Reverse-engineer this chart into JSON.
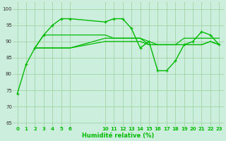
{
  "xlabel": "Humidité relative (%)",
  "bg_color": "#cceedd",
  "line_color": "#00bb00",
  "grid_color": "#99cc99",
  "xlim": [
    -0.5,
    23.5
  ],
  "ylim": [
    64,
    102
  ],
  "yticks": [
    65,
    70,
    75,
    80,
    85,
    90,
    95,
    100
  ],
  "xtick_positions": [
    0,
    1,
    2,
    3,
    4,
    5,
    6,
    10,
    11,
    12,
    13,
    14,
    15,
    16,
    17,
    18,
    19,
    20,
    21,
    22,
    23
  ],
  "xtick_labels": [
    "0",
    "1",
    "2",
    "3",
    "4",
    "5",
    "6",
    "10",
    "11",
    "12",
    "13",
    "14",
    "15",
    "16",
    "17",
    "18",
    "19",
    "20",
    "21",
    "22",
    "23"
  ],
  "series_main": {
    "x": [
      0,
      1,
      2,
      3,
      4,
      5,
      6,
      10,
      11,
      12,
      13,
      14,
      15,
      16,
      17,
      18,
      19,
      20,
      21,
      22,
      23
    ],
    "y": [
      74,
      83,
      88,
      92,
      95,
      97,
      97,
      96,
      97,
      97,
      94,
      88,
      90,
      81,
      81,
      84,
      89,
      90,
      93,
      92,
      89
    ]
  },
  "series_flat1": {
    "x": [
      2,
      3,
      4,
      5,
      6,
      10,
      11,
      12,
      13,
      14,
      15,
      16,
      17,
      18,
      19,
      20,
      21,
      22,
      23
    ],
    "y": [
      88,
      92,
      92,
      92,
      92,
      92,
      91,
      91,
      91,
      91,
      89,
      89,
      89,
      89,
      91,
      91,
      91,
      91,
      91
    ]
  },
  "series_flat2": {
    "x": [
      2,
      3,
      4,
      5,
      6,
      10,
      11,
      12,
      13,
      14,
      15,
      16,
      17,
      18,
      19,
      20,
      21,
      22,
      23
    ],
    "y": [
      88,
      88,
      88,
      88,
      88,
      90,
      90,
      90,
      90,
      90,
      89,
      89,
      89,
      89,
      89,
      89,
      89,
      90,
      89
    ]
  },
  "series_flat3": {
    "x": [
      2,
      3,
      4,
      5,
      6,
      10,
      11,
      12,
      13,
      14,
      15,
      16,
      17,
      18,
      19,
      20,
      21,
      22,
      23
    ],
    "y": [
      88,
      88,
      88,
      88,
      88,
      91,
      91,
      91,
      91,
      91,
      90,
      89,
      89,
      89,
      89,
      89,
      89,
      90,
      89
    ]
  }
}
